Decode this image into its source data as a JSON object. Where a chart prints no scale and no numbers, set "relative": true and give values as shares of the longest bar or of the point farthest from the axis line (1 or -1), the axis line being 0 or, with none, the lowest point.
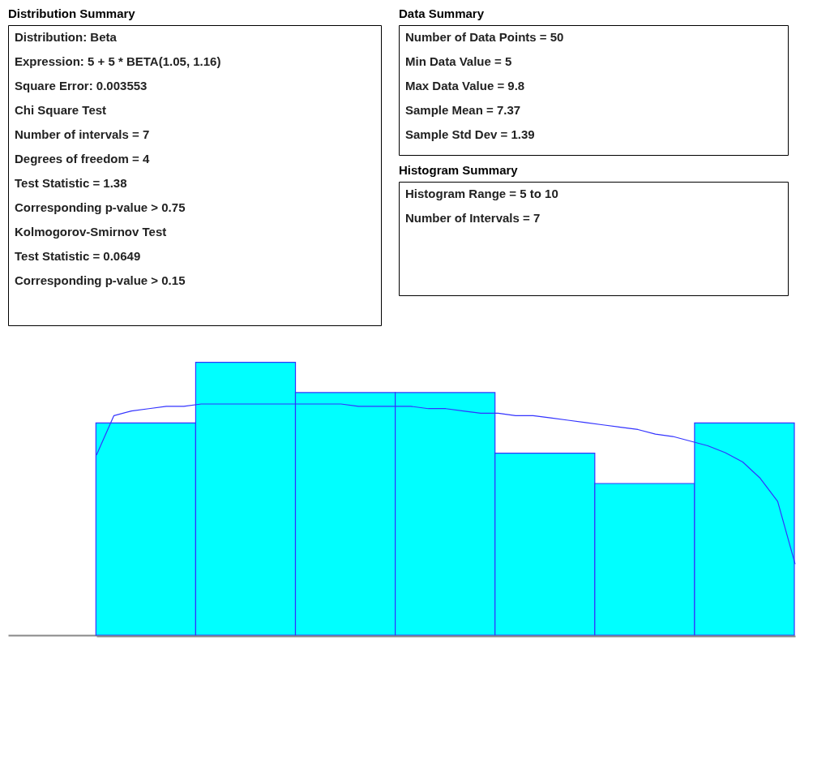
{
  "chart_data": [
    {
      "type": "other",
      "title": "Distribution Summary",
      "annotations": [
        "Distribution: Beta",
        "Expression: 5 + 5 * BETA(1.05, 1.16)",
        "Square Error: 0.003553",
        "Chi Square Test",
        "Number of intervals = 7",
        "Degrees of freedom = 4",
        "Test Statistic = 1.38",
        "Corresponding p-value > 0.75",
        "Kolmogorov-Smirnov Test",
        "Test Statistic = 0.0649",
        "Corresponding p-value > 0.15"
      ]
    },
    {
      "type": "other",
      "title": "Data Summary",
      "annotations": [
        "Number of Data Points = 50",
        "Min Data Value = 5",
        "Max Data Value = 9.8",
        "Sample Mean = 7.37",
        "Sample Std Dev = 1.39"
      ]
    },
    {
      "type": "other",
      "title": "Histogram Summary",
      "annotations": [
        "Histogram Range = 5 to 10",
        "Number of Intervals = 7"
      ]
    },
    {
      "type": "bar",
      "relative": true,
      "tick_labels": false,
      "categories": [
        null,
        null,
        null,
        null,
        null,
        null,
        null
      ],
      "color": "#00ffff",
      "values": [
        0.778,
        1,
        0.889,
        0.889,
        0.667,
        0.556,
        0.778
      ]
    },
    {
      "type": "line",
      "relative": true,
      "tick_labels": false,
      "categories": [
        null,
        null,
        null,
        null,
        null,
        null,
        null,
        null,
        null,
        null,
        null,
        null,
        null,
        null,
        null,
        null,
        null,
        null,
        null,
        null,
        null,
        null,
        null,
        null,
        null,
        null,
        null,
        null,
        null,
        null,
        null,
        null,
        null,
        null,
        null,
        null,
        null,
        null,
        null,
        null,
        null
      ],
      "color": "#3333ff",
      "values": [
        0.78,
        0.95,
        0.97,
        0.98,
        0.99,
        0.99,
        1,
        1,
        1,
        1,
        1,
        1,
        1,
        1,
        1,
        0.99,
        0.99,
        0.99,
        0.99,
        0.98,
        0.98,
        0.97,
        0.96,
        0.96,
        0.95,
        0.95,
        0.94,
        0.93,
        0.92,
        0.91,
        0.9,
        0.89,
        0.87,
        0.86,
        0.84,
        0.82,
        0.79,
        0.75,
        0.68,
        0.58,
        0.31
      ]
    }
  ]
}
